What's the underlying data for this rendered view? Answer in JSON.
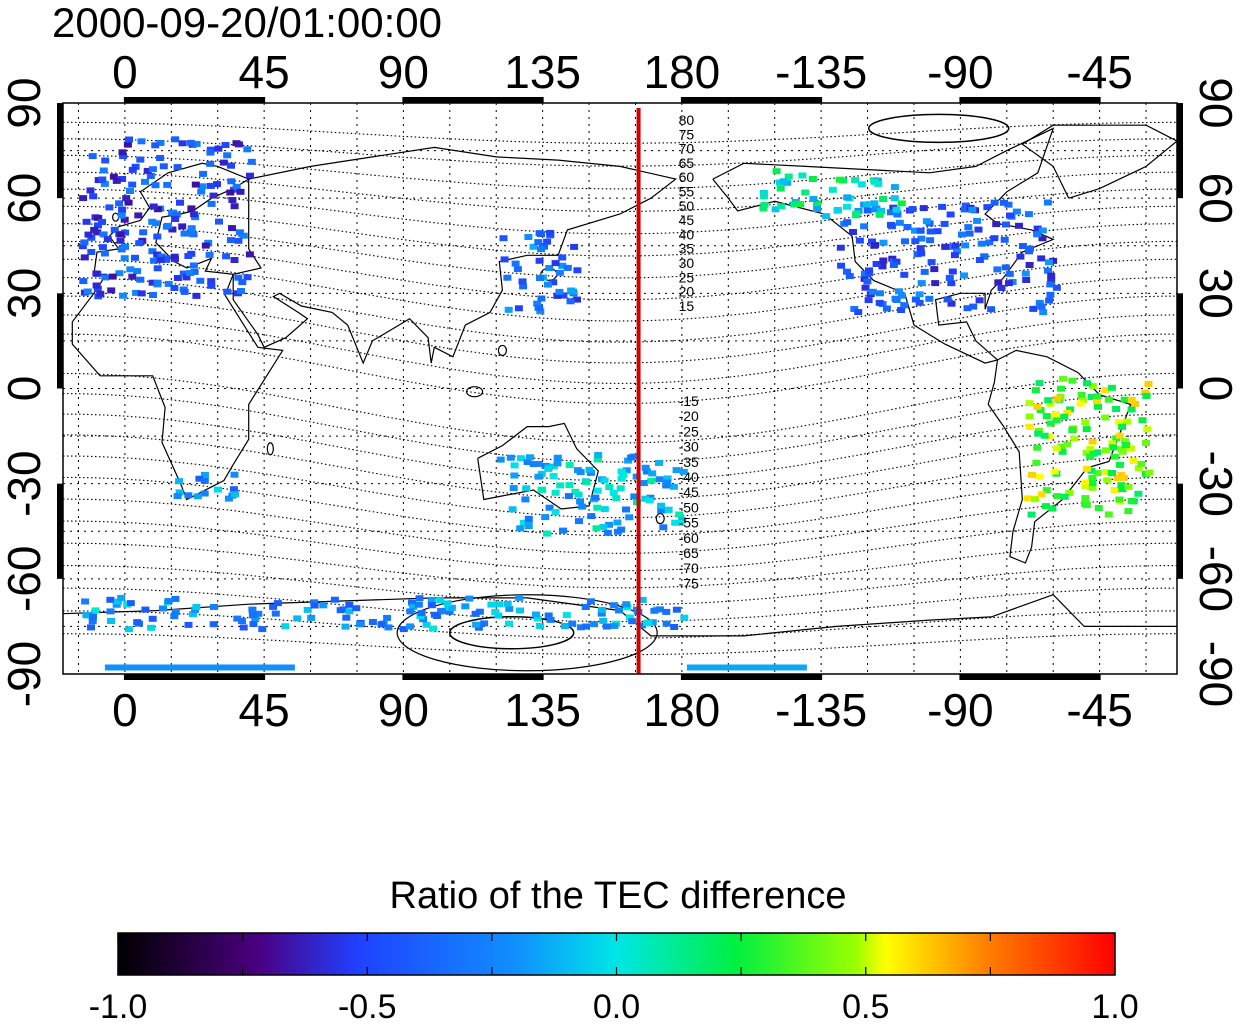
{
  "map": {
    "timestamp": "2000-09-20/01:00:00",
    "top_lon_labels": [
      "0",
      "45",
      "90",
      "135",
      "180",
      "-135",
      "-90",
      "-45"
    ],
    "bottom_lon_labels": [
      "0",
      "45",
      "90",
      "135",
      "180",
      "-135",
      "-90",
      "-45"
    ],
    "left_lat_labels": [
      "90",
      "60",
      "30",
      "0",
      "-30",
      "-60",
      "-90"
    ],
    "right_lat_labels": [
      "90",
      "60",
      "30",
      "0",
      "-30",
      "-60",
      "-90"
    ],
    "lon_ticks_deg": [
      0,
      45,
      90,
      135,
      180,
      225,
      270,
      315
    ],
    "lat_ticks_deg": [
      90,
      60,
      30,
      0,
      -30,
      -60,
      -90
    ],
    "lon_range_deg": [
      -20,
      340
    ],
    "lat_range_deg": [
      -90,
      90
    ],
    "grid": "dotted",
    "terminator_lon_deg": 166,
    "terminator_color": "#d40000",
    "contour_labels_north": [
      "80",
      "75",
      "70",
      "65",
      "60",
      "55",
      "50",
      "45",
      "40",
      "35",
      "30",
      "25",
      "20",
      "15"
    ],
    "contour_labels_south": [
      "-15",
      "-20",
      "-25",
      "-30",
      "-35",
      "-40",
      "-45",
      "-50",
      "-55",
      "-60",
      "-65",
      "-70",
      "-75"
    ]
  },
  "colorbar": {
    "title": "Ratio of the TEC difference",
    "tick_labels": [
      "-1.0",
      "-0.5",
      "0.0",
      "0.5",
      "1.0"
    ],
    "range": [
      -1.0,
      1.0
    ],
    "colors": [
      "#000000",
      "#4a0080",
      "#2040ff",
      "#00e0ff",
      "#00ff40",
      "#ffff00",
      "#ff8000",
      "#ff0000"
    ]
  },
  "data_regions": [
    {
      "region": "Europe",
      "lon": [
        -15,
        40
      ],
      "lat": [
        30,
        80
      ],
      "value": -0.45
    },
    {
      "region": "North America",
      "lon": [
        230,
        300
      ],
      "lat": [
        25,
        60
      ],
      "value": -0.4
    },
    {
      "region": "Canada-Alaska",
      "lon": [
        205,
        250
      ],
      "lat": [
        55,
        70
      ],
      "value": 0.05
    },
    {
      "region": "East Asia",
      "lon": [
        120,
        145
      ],
      "lat": [
        25,
        50
      ],
      "value": -0.35
    },
    {
      "region": "Australia",
      "lon": [
        120,
        180
      ],
      "lat": [
        -45,
        -20
      ],
      "value": -0.1
    },
    {
      "region": "South America",
      "lon": [
        290,
        330
      ],
      "lat": [
        -40,
        5
      ],
      "value": 0.4
    },
    {
      "region": "Southern Africa",
      "lon": [
        15,
        35
      ],
      "lat": [
        -35,
        -25
      ],
      "value": -0.25
    },
    {
      "region": "Antarctic coast",
      "lon": [
        -15,
        180
      ],
      "lat": [
        -75,
        -65
      ],
      "value": -0.2
    }
  ]
}
